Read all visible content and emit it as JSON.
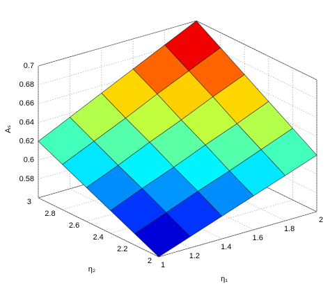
{
  "chart_data": {
    "type": "surface",
    "xlabel": "η₁",
    "ylabel": "η₂",
    "zlabel": "Aₛ",
    "x": [
      1,
      1.2,
      1.4,
      1.6,
      1.8,
      2
    ],
    "y": [
      2,
      2.2,
      2.4,
      2.6,
      2.8,
      3
    ],
    "z": [
      [
        0.56,
        0.572,
        0.584,
        0.596,
        0.608,
        0.62
      ],
      [
        0.572,
        0.585,
        0.598,
        0.61,
        0.623,
        0.636
      ],
      [
        0.584,
        0.598,
        0.611,
        0.625,
        0.638,
        0.652
      ],
      [
        0.596,
        0.61,
        0.625,
        0.639,
        0.654,
        0.668
      ],
      [
        0.608,
        0.623,
        0.638,
        0.654,
        0.669,
        0.684
      ],
      [
        0.62,
        0.636,
        0.652,
        0.668,
        0.684,
        0.7
      ]
    ],
    "xlim": [
      1,
      2
    ],
    "ylim": [
      2,
      3
    ],
    "zlim": [
      0.56,
      0.7
    ],
    "xticks": [
      1,
      1.2,
      1.4,
      1.6,
      1.8,
      2
    ],
    "yticks": [
      2,
      2.2,
      2.4,
      2.6,
      2.8,
      3
    ],
    "zticks": [
      0.58,
      0.6,
      0.62,
      0.64,
      0.66,
      0.68,
      0.7
    ],
    "colormap": "jet",
    "grid": true
  }
}
